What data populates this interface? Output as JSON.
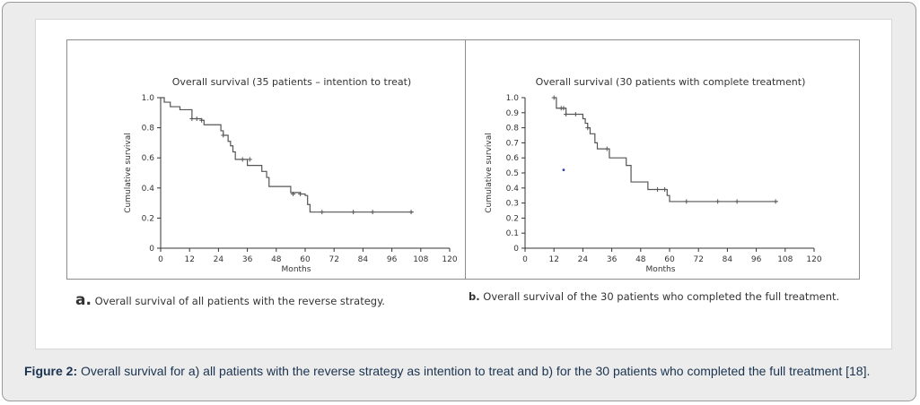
{
  "figure": {
    "caption_label": "Figure 2:",
    "caption_text": " Overall survival for a) all patients with the reverse strategy as intention to treat and b) for the 30 patients who completed the full treatment [18]."
  },
  "panels": {
    "a": {
      "letter": "a.",
      "subcaption": " Overall survival of all patients with the reverse strategy."
    },
    "b": {
      "letter": "b.",
      "subcaption": " Overall survival of the 30 patients who completed the full treatment."
    }
  },
  "colors": {
    "line": "#555555",
    "axis": "#333333",
    "frame": "#8c8c8c",
    "caption": "#1a3350",
    "stray_dot": "#3344aa"
  },
  "chart_data": [
    {
      "type": "line",
      "step": true,
      "title": "Overall survival (35 patients – intention to treat)",
      "xlabel": "Months",
      "ylabel": "Cumulative survival",
      "xlim": [
        0,
        120
      ],
      "ylim": [
        0,
        1.0
      ],
      "xticks": [
        0,
        12,
        24,
        36,
        48,
        60,
        72,
        84,
        96,
        108,
        120
      ],
      "yticks": [
        0,
        0.2,
        0.4,
        0.6,
        0.8,
        1.0
      ],
      "ytick_labels": [
        "0",
        "0.2",
        "0.4",
        "0.6",
        "0.8",
        "1.0"
      ],
      "grid": false,
      "series": [
        {
          "steps": [
            [
              0,
              1.0
            ],
            [
              1.5,
              0.97
            ],
            [
              4,
              0.94
            ],
            [
              8,
              0.92
            ],
            [
              13,
              0.86
            ],
            [
              17,
              0.85
            ],
            [
              18,
              0.82
            ],
            [
              25,
              0.78
            ],
            [
              26,
              0.75
            ],
            [
              28,
              0.71
            ],
            [
              29,
              0.68
            ],
            [
              30,
              0.64
            ],
            [
              31,
              0.59
            ],
            [
              36,
              0.55
            ],
            [
              42,
              0.51
            ],
            [
              44,
              0.47
            ],
            [
              45,
              0.41
            ],
            [
              54,
              0.37
            ],
            [
              58,
              0.36
            ],
            [
              60,
              0.35
            ],
            [
              61,
              0.29
            ],
            [
              62,
              0.24
            ],
            [
              105,
              0.24
            ]
          ],
          "censored": [
            [
              13,
              0.86
            ],
            [
              15,
              0.86
            ],
            [
              17,
              0.85
            ],
            [
              26,
              0.75
            ],
            [
              34,
              0.59
            ],
            [
              37,
              0.59
            ],
            [
              55,
              0.36
            ],
            [
              58,
              0.36
            ],
            [
              67,
              0.24
            ],
            [
              80,
              0.24
            ],
            [
              88,
              0.24
            ],
            [
              104,
              0.24
            ]
          ]
        }
      ]
    },
    {
      "type": "line",
      "step": true,
      "title": "Overall survival (30 patients with complete treatment)",
      "xlabel": "Months",
      "ylabel": "Cumulative survival",
      "xlim": [
        0,
        120
      ],
      "ylim": [
        0,
        1.0
      ],
      "xticks": [
        0,
        12,
        24,
        36,
        48,
        60,
        72,
        84,
        96,
        108,
        120
      ],
      "yticks": [
        0,
        0.1,
        0.2,
        0.3,
        0.4,
        0.5,
        0.6,
        0.7,
        0.8,
        0.9,
        1.0
      ],
      "ytick_labels": [
        "0",
        "0.1",
        "0.2",
        "0.3",
        "0.4",
        "0.5",
        "0.6",
        "0.7",
        "0.8",
        "0.9",
        "1.0"
      ],
      "grid": false,
      "series": [
        {
          "steps": [
            [
              12,
              1.0
            ],
            [
              13,
              0.93
            ],
            [
              17,
              0.89
            ],
            [
              24,
              0.86
            ],
            [
              25,
              0.83
            ],
            [
              26,
              0.8
            ],
            [
              27,
              0.76
            ],
            [
              29,
              0.7
            ],
            [
              30,
              0.66
            ],
            [
              35,
              0.6
            ],
            [
              42,
              0.55
            ],
            [
              44,
              0.44
            ],
            [
              51,
              0.39
            ],
            [
              59,
              0.35
            ],
            [
              60,
              0.31
            ],
            [
              105,
              0.31
            ]
          ],
          "censored": [
            [
              12,
              1.0
            ],
            [
              15,
              0.93
            ],
            [
              16,
              0.93
            ],
            [
              17,
              0.89
            ],
            [
              21,
              0.89
            ],
            [
              26,
              0.8
            ],
            [
              34,
              0.66
            ],
            [
              55,
              0.39
            ],
            [
              58,
              0.39
            ],
            [
              67,
              0.31
            ],
            [
              80,
              0.31
            ],
            [
              88,
              0.31
            ],
            [
              104,
              0.31
            ]
          ]
        }
      ],
      "stray_points": [
        [
          16,
          0.52
        ]
      ]
    }
  ]
}
